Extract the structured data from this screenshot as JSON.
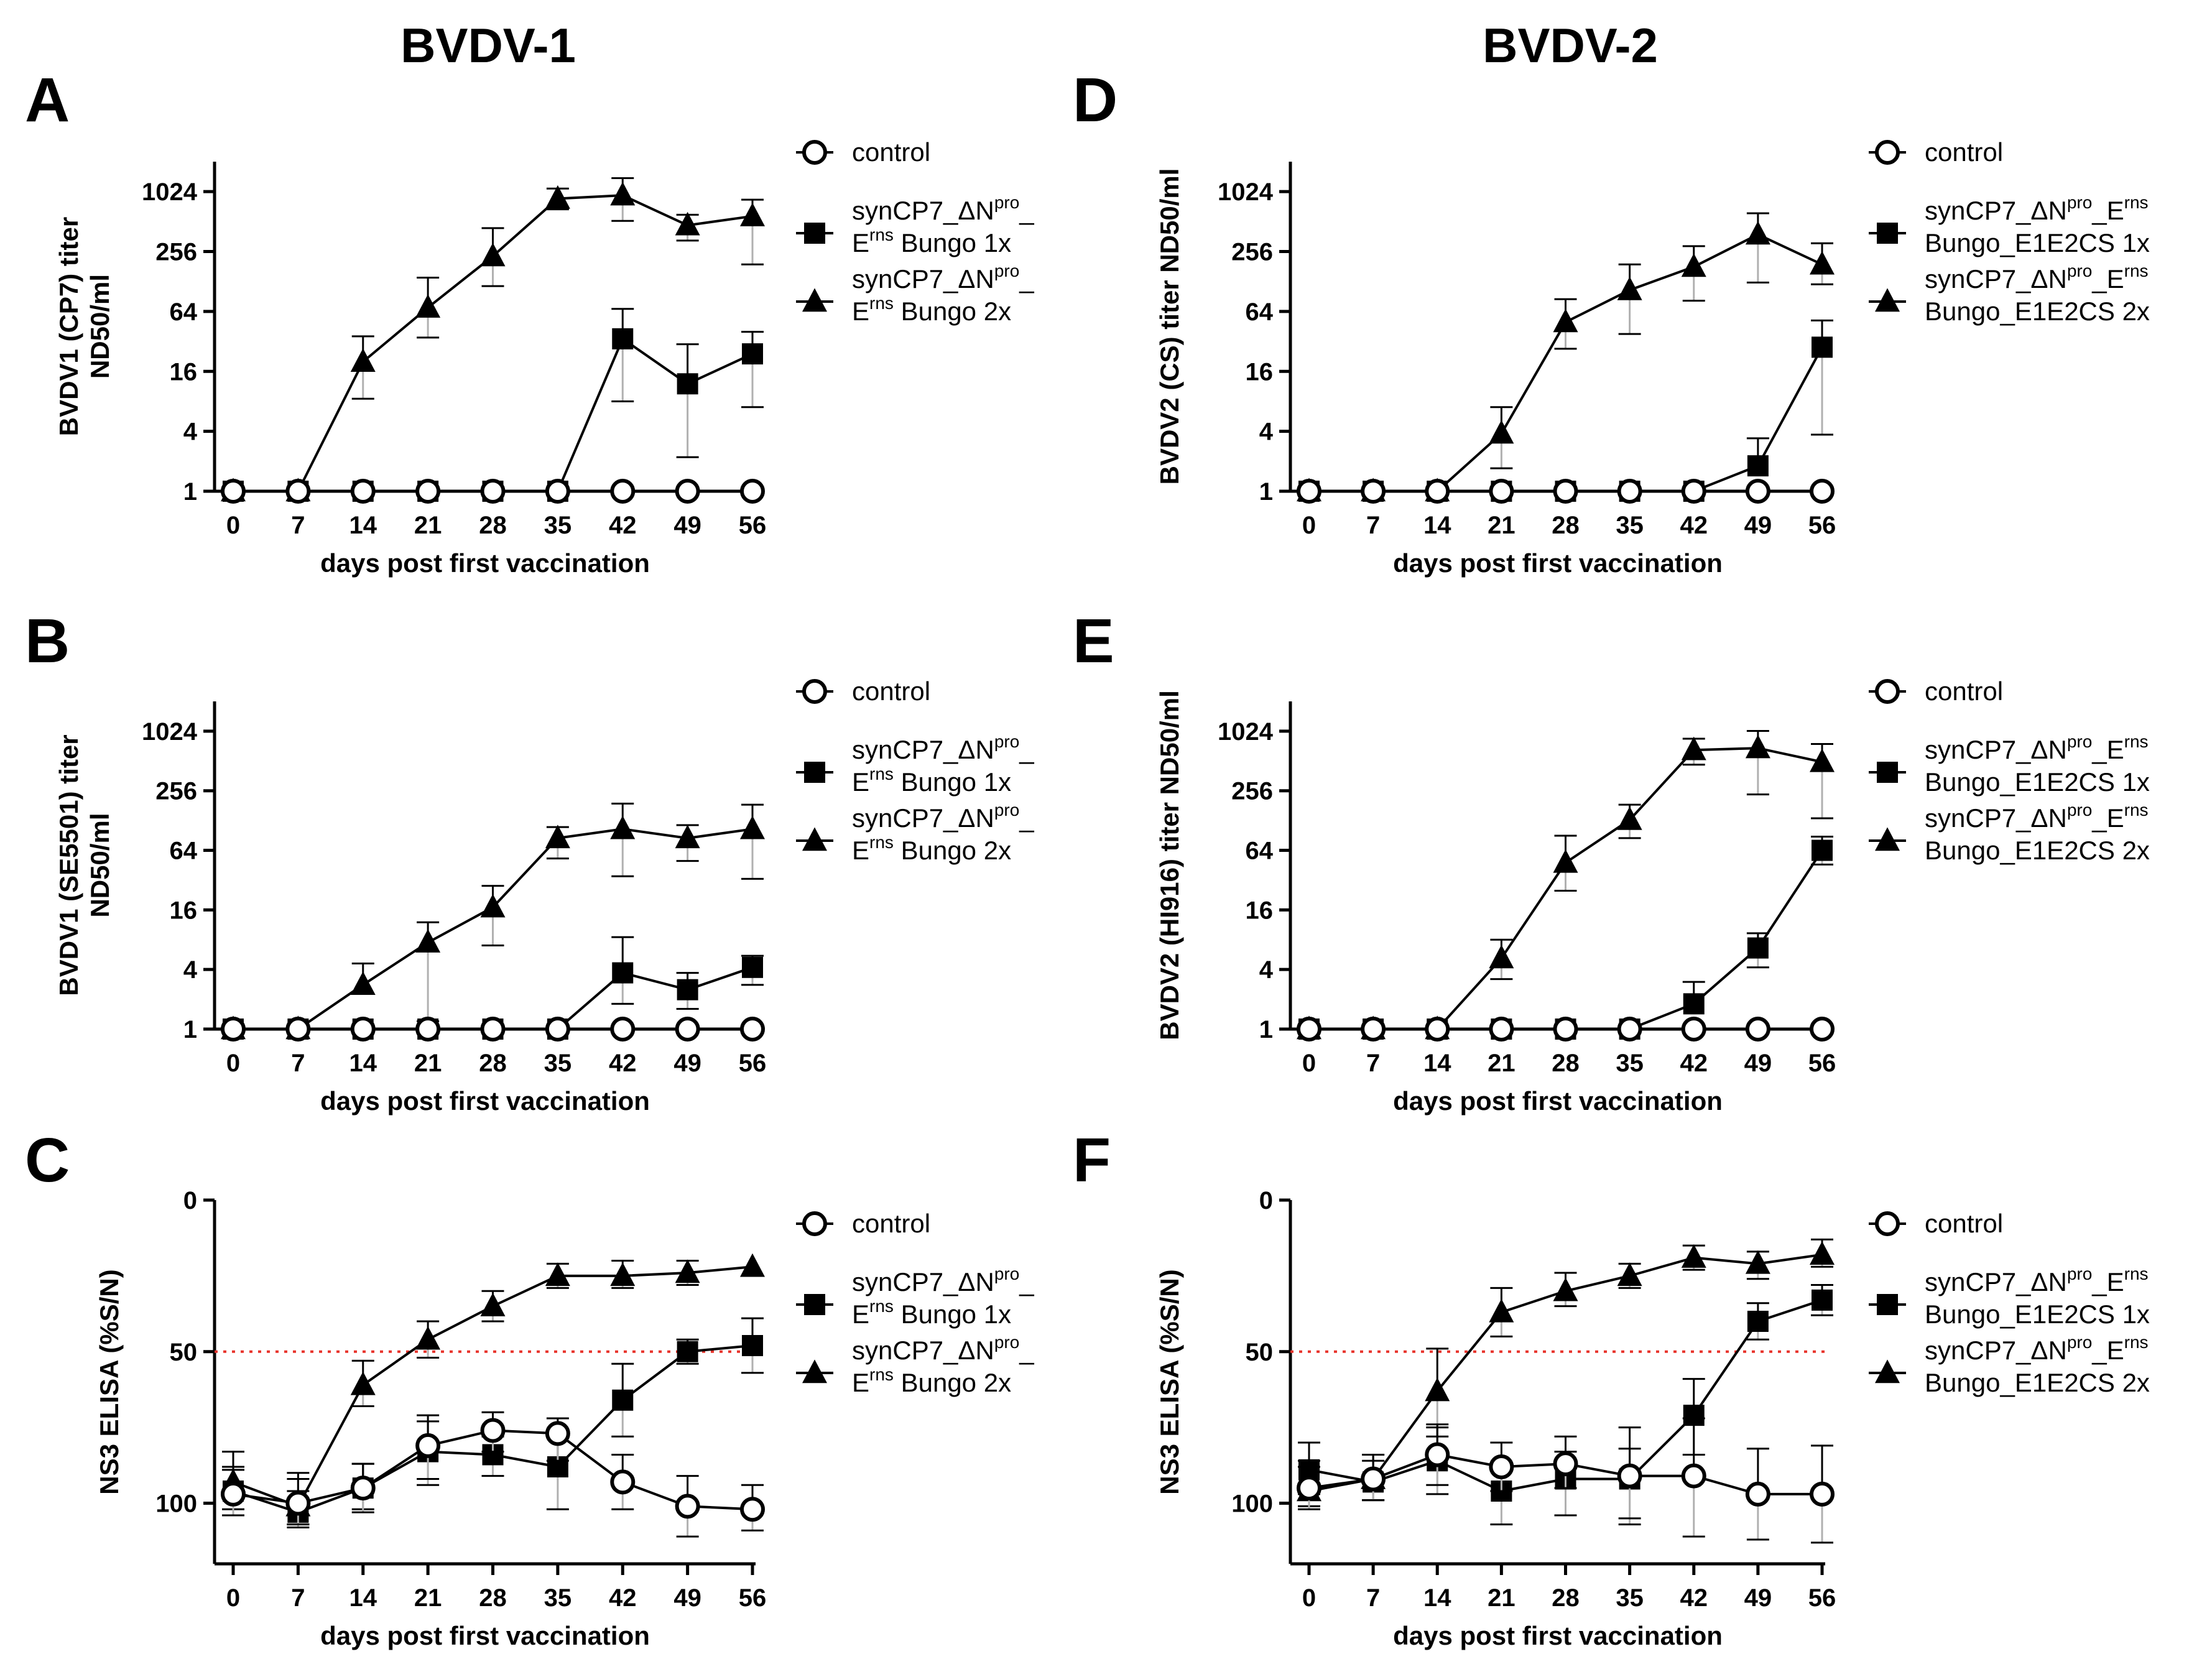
{
  "figure": {
    "column_titles": [
      "BVDV-1",
      "BVDV-2"
    ],
    "colors": {
      "axis": "#000000",
      "marker_fill": "#000000",
      "open_fill": "#ffffff",
      "threshold": "#e8342c",
      "error_light": "#b0b0b0"
    }
  },
  "chart_data": [
    {
      "panel": "A",
      "type": "line",
      "scale": "log2",
      "xlabel": "days post first vaccination",
      "ylabel_lines": [
        "BVDV1 (CP7) titer",
        "ND50/ml"
      ],
      "x": [
        0,
        7,
        14,
        21,
        28,
        35,
        42,
        49,
        56
      ],
      "xlim": [
        0,
        56
      ],
      "ylim": [
        1,
        2048
      ],
      "yticks": [
        1,
        4,
        16,
        64,
        256,
        1024
      ],
      "yticklabels": [
        "1",
        "4",
        "16",
        "64",
        "256",
        "1024"
      ],
      "legend_style": "bvdv1",
      "series": [
        {
          "name": "control",
          "marker": "circle",
          "values": [
            1,
            1,
            1,
            1,
            1,
            1,
            1,
            1,
            1
          ],
          "err_hi": [
            null,
            null,
            null,
            null,
            null,
            null,
            null,
            null,
            null
          ],
          "err_lo": [
            null,
            null,
            null,
            null,
            null,
            null,
            null,
            null,
            null
          ]
        },
        {
          "name": "synCP7_ΔNpro_Erns Bungo 1x",
          "marker": "square",
          "values": [
            1,
            1,
            1,
            1,
            1,
            1,
            34,
            12,
            24
          ],
          "err_hi": [
            null,
            null,
            null,
            null,
            null,
            null,
            68,
            30,
            40
          ],
          "err_lo": [
            null,
            null,
            null,
            null,
            null,
            null,
            8,
            2.2,
            7
          ]
        },
        {
          "name": "synCP7_ΔNpro_Erns Bungo 2x",
          "marker": "triangle",
          "values": [
            1,
            1,
            20,
            70,
            230,
            870,
            940,
            470,
            580
          ],
          "err_hi": [
            null,
            null,
            36,
            140,
            440,
            1100,
            1400,
            600,
            850
          ],
          "err_lo": [
            null,
            null,
            8.5,
            35,
            115,
            680,
            520,
            330,
            190
          ]
        }
      ]
    },
    {
      "panel": "B",
      "type": "line",
      "scale": "log2",
      "xlabel": "days post first vaccination",
      "ylabel_lines": [
        "BVDV1 (SE5501) titer",
        "ND50/ml"
      ],
      "x": [
        0,
        7,
        14,
        21,
        28,
        35,
        42,
        49,
        56
      ],
      "xlim": [
        0,
        56
      ],
      "ylim": [
        1,
        2048
      ],
      "yticks": [
        1,
        4,
        16,
        64,
        256,
        1024
      ],
      "yticklabels": [
        "1",
        "4",
        "16",
        "64",
        "256",
        "1024"
      ],
      "legend_style": "bvdv1",
      "series": [
        {
          "name": "control",
          "marker": "circle",
          "values": [
            1,
            1,
            1,
            1,
            1,
            1,
            1,
            1,
            1
          ],
          "err_hi": [
            null,
            null,
            null,
            null,
            null,
            null,
            null,
            null,
            null
          ],
          "err_lo": [
            null,
            null,
            null,
            null,
            null,
            null,
            null,
            null,
            null
          ]
        },
        {
          "name": "synCP7_ΔNpro_Erns Bungo 1x",
          "marker": "square",
          "values": [
            1,
            1,
            1,
            1,
            1,
            1,
            3.7,
            2.5,
            4.2
          ],
          "err_hi": [
            null,
            null,
            null,
            null,
            null,
            null,
            8.5,
            3.7,
            5.5
          ],
          "err_lo": [
            null,
            null,
            null,
            null,
            null,
            null,
            1.8,
            1.6,
            2.8
          ]
        },
        {
          "name": "synCP7_ΔNpro_Erns Bungo 2x",
          "marker": "triangle",
          "values": [
            1,
            1,
            2.8,
            7.5,
            17,
            85,
            105,
            85,
            105
          ],
          "err_hi": [
            null,
            null,
            4.6,
            12,
            28,
            110,
            190,
            115,
            185
          ],
          "err_lo": [
            null,
            null,
            null,
            1.2,
            7,
            53,
            35,
            50,
            33
          ]
        }
      ]
    },
    {
      "panel": "C",
      "type": "line",
      "scale": "linear_inverted",
      "xlabel": "days post first vaccination",
      "ylabel_lines": [
        "NS3 ELISA (%S/N)"
      ],
      "x": [
        0,
        7,
        14,
        21,
        28,
        35,
        42,
        49,
        56
      ],
      "xlim": [
        0,
        56
      ],
      "ylim": [
        0,
        120
      ],
      "yticks": [
        0,
        50,
        100
      ],
      "yticklabels": [
        "0",
        "50",
        "100"
      ],
      "threshold": 50,
      "legend_style": "bvdv1",
      "series": [
        {
          "name": "control",
          "marker": "circle",
          "values": [
            97,
            100,
            95,
            81,
            76,
            77,
            93,
            101,
            102
          ],
          "err_hi": [
            89,
            92,
            87,
            71,
            70,
            72,
            84,
            91,
            94
          ],
          "err_lo": [
            104,
            107,
            103,
            92,
            83,
            86,
            102,
            111,
            109
          ]
        },
        {
          "name": "synCP7_ΔNpro_Erns Bungo 1x",
          "marker": "square",
          "values": [
            96,
            103,
            95,
            83,
            84,
            88,
            66,
            50,
            48
          ],
          "err_hi": [
            88,
            96,
            87,
            73,
            78,
            76,
            54,
            46,
            39
          ],
          "err_lo": [
            104,
            107,
            102,
            94,
            91,
            102,
            78,
            54,
            57
          ]
        },
        {
          "name": "synCP7_ΔNpro_Erns Bungo 2x",
          "marker": "triangle",
          "values": [
            93,
            101,
            61,
            46,
            35,
            25,
            25,
            24,
            22
          ],
          "err_hi": [
            83,
            90,
            53,
            40,
            30,
            21,
            20,
            20,
            null
          ],
          "err_lo": [
            102,
            108,
            68,
            52,
            40,
            29,
            29,
            28,
            null
          ]
        }
      ]
    },
    {
      "panel": "D",
      "type": "line",
      "scale": "log2",
      "xlabel": "days post first vaccination",
      "ylabel_lines": [
        "BVDV2 (CS) titer ND50/ml"
      ],
      "x": [
        0,
        7,
        14,
        21,
        28,
        35,
        42,
        49,
        56
      ],
      "xlim": [
        0,
        56
      ],
      "ylim": [
        1,
        2048
      ],
      "yticks": [
        1,
        4,
        16,
        64,
        256,
        1024
      ],
      "yticklabels": [
        "1",
        "4",
        "16",
        "64",
        "256",
        "1024"
      ],
      "legend_style": "bvdv2",
      "series": [
        {
          "name": "control",
          "marker": "circle",
          "values": [
            1,
            1,
            1,
            1,
            1,
            1,
            1,
            1,
            1
          ],
          "err_hi": [
            null,
            null,
            null,
            null,
            null,
            null,
            null,
            null,
            null
          ],
          "err_lo": [
            null,
            null,
            null,
            null,
            null,
            null,
            null,
            null,
            null
          ]
        },
        {
          "name": "synCP7_ΔNpro_Erns Bungo_E1E2CS 1x",
          "marker": "square",
          "values": [
            1,
            1,
            1,
            1,
            1,
            1,
            1,
            1.8,
            28
          ],
          "err_hi": [
            null,
            null,
            null,
            null,
            null,
            null,
            null,
            3.4,
            52
          ],
          "err_lo": [
            null,
            null,
            null,
            null,
            null,
            null,
            null,
            null,
            3.7
          ]
        },
        {
          "name": "synCP7_ΔNpro_Erns Bungo_E1E2CS 2x",
          "marker": "triangle",
          "values": [
            1,
            1,
            1,
            3.8,
            50,
            105,
            180,
            380,
            190
          ],
          "err_hi": [
            null,
            null,
            null,
            7,
            85,
            190,
            290,
            620,
            310
          ],
          "err_lo": [
            null,
            null,
            null,
            1.7,
            27,
            38,
            82,
            125,
            120
          ]
        }
      ]
    },
    {
      "panel": "E",
      "type": "line",
      "scale": "log2",
      "xlabel": "days post first vaccination",
      "ylabel_lines": [
        "BVDV2 (HI916) titer ND50/ml"
      ],
      "x": [
        0,
        7,
        14,
        21,
        28,
        35,
        42,
        49,
        56
      ],
      "xlim": [
        0,
        56
      ],
      "ylim": [
        1,
        2048
      ],
      "yticks": [
        1,
        4,
        16,
        64,
        256,
        1024
      ],
      "yticklabels": [
        "1",
        "4",
        "16",
        "64",
        "256",
        "1024"
      ],
      "legend_style": "bvdv2",
      "series": [
        {
          "name": "control",
          "marker": "circle",
          "values": [
            1,
            1,
            1,
            1,
            1,
            1,
            1,
            1,
            1
          ],
          "err_hi": [
            null,
            null,
            null,
            null,
            null,
            null,
            null,
            null,
            null
          ],
          "err_lo": [
            null,
            null,
            null,
            null,
            null,
            null,
            null,
            null,
            null
          ]
        },
        {
          "name": "synCP7_ΔNpro_Erns Bungo_E1E2CS 1x",
          "marker": "square",
          "values": [
            1,
            1,
            1,
            1,
            1,
            1,
            1.8,
            6.6,
            64
          ],
          "err_hi": [
            null,
            null,
            null,
            null,
            null,
            null,
            3,
            9.3,
            88
          ],
          "err_lo": [
            null,
            null,
            null,
            null,
            null,
            null,
            null,
            4.2,
            46
          ]
        },
        {
          "name": "synCP7_ΔNpro_Erns Bungo_E1E2CS 2x",
          "marker": "triangle",
          "values": [
            1,
            1,
            1,
            5.2,
            48,
            130,
            660,
            690,
            500
          ],
          "err_hi": [
            null,
            null,
            null,
            8,
            90,
            185,
            860,
            1030,
            760
          ],
          "err_lo": [
            null,
            null,
            null,
            3.2,
            25,
            85,
            470,
            235,
            135
          ]
        }
      ]
    },
    {
      "panel": "F",
      "type": "line",
      "scale": "linear_inverted",
      "xlabel": "days post first vaccination",
      "ylabel_lines": [
        "NS3 ELISA (%S/N)"
      ],
      "x": [
        0,
        7,
        14,
        21,
        28,
        35,
        42,
        49,
        56
      ],
      "xlim": [
        0,
        56
      ],
      "ylim": [
        0,
        120
      ],
      "yticks": [
        0,
        50,
        100
      ],
      "yticklabels": [
        "0",
        "50",
        "100"
      ],
      "threshold": 50,
      "legend_style": "bvdv2",
      "series": [
        {
          "name": "control",
          "marker": "circle",
          "values": [
            95,
            92,
            84,
            88,
            87,
            91,
            91,
            97,
            97
          ],
          "err_hi": [
            86,
            84,
            74,
            80,
            78,
            75,
            72,
            82,
            81
          ],
          "err_lo": [
            102,
            99,
            94,
            96,
            95,
            105,
            111,
            112,
            113
          ]
        },
        {
          "name": "synCP7_ΔNpro_Erns Bungo_E1E2CS 1x",
          "marker": "square",
          "values": [
            89,
            93,
            86,
            96,
            92,
            92,
            71,
            40,
            33
          ],
          "err_hi": [
            80,
            86,
            75,
            87,
            83,
            82,
            59,
            34,
            28
          ],
          "err_lo": [
            97,
            99,
            97,
            107,
            104,
            107,
            84,
            46,
            38
          ]
        },
        {
          "name": "synCP7_ΔNpro_Erns Bungo_E1E2CS 2x",
          "marker": "triangle",
          "values": [
            96,
            92,
            63,
            37,
            30,
            25,
            19,
            21,
            18
          ],
          "err_hi": [
            88,
            84,
            49,
            29,
            24,
            21,
            15,
            17,
            13
          ],
          "err_lo": [
            101,
            99,
            78,
            45,
            35,
            29,
            23,
            26,
            22
          ]
        }
      ]
    }
  ],
  "legend_text": {
    "bvdv1": {
      "control": "control",
      "series1": {
        "line1_base": "synCP7_ΔN",
        "line1_sup": "pro",
        "line1_tail": "_",
        "line2_base": "E",
        "line2_sup": "rns",
        "line2_tail": " Bungo 1x"
      },
      "series2": {
        "line1_base": "synCP7_ΔN",
        "line1_sup": "pro",
        "line1_tail": "_",
        "line2_base": "E",
        "line2_sup": "rns",
        "line2_tail": " Bungo 2x"
      }
    },
    "bvdv2": {
      "control": "control",
      "series1": {
        "line1_base": "synCP7_ΔN",
        "line1_sup": "pro",
        "line1_tail": "_E",
        "line1_sup2": "rns",
        "line2": "Bungo_E1E2CS 1x"
      },
      "series2": {
        "line1_base": "synCP7_ΔN",
        "line1_sup": "pro",
        "line1_tail": "_E",
        "line1_sup2": "rns",
        "line2": "Bungo_E1E2CS 2x"
      }
    }
  }
}
